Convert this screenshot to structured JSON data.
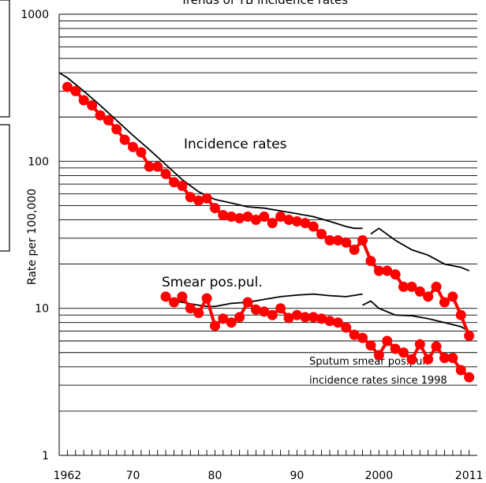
{
  "chart_data": {
    "type": "line",
    "title": "Trends of TB incidence rates",
    "ylabel": "Rate per 100,000",
    "yscale": "log",
    "ylim": [
      1,
      1000
    ],
    "xlim": [
      1961,
      2012
    ],
    "y_tick_labels": [
      "1",
      "10",
      "100",
      "1000"
    ],
    "x_tick_labels": [
      "1962",
      "70",
      "80",
      "90",
      "2000",
      "2011"
    ],
    "annotations": [
      "Incidence rates",
      "Smear pos.pul.",
      "Sputum smear pos.pul.",
      "incidence rates since 1998"
    ],
    "colors": {
      "marker_series": "#ff0000",
      "line_series": "#000000"
    },
    "series": [
      {
        "id": "incidence_markers",
        "x": [
          1962,
          1963,
          1964,
          1965,
          1966,
          1967,
          1968,
          1969,
          1970,
          1971,
          1972,
          1973,
          1974,
          1975,
          1976,
          1977,
          1978,
          1979,
          1980,
          1981,
          1982,
          1983,
          1984,
          1985,
          1986,
          1987,
          1988,
          1989,
          1990,
          1991,
          1992,
          1993,
          1994,
          1995,
          1996,
          1997,
          1998,
          1999,
          2000,
          2001,
          2002,
          2003,
          2004,
          2005,
          2006,
          2007,
          2008,
          2009,
          2010,
          2011
        ],
        "values": [
          320,
          300,
          260,
          240,
          205,
          190,
          165,
          140,
          125,
          115,
          92,
          92,
          82,
          72,
          68,
          57,
          54,
          56,
          48,
          43,
          42,
          41,
          42,
          40,
          42,
          38,
          42,
          40,
          39,
          38,
          36,
          32,
          29,
          29,
          28,
          25,
          29,
          21,
          18,
          18,
          17,
          14,
          14,
          13,
          12,
          14,
          11,
          12,
          9,
          6.5
        ]
      },
      {
        "id": "incidence_line_pre1999",
        "x": [
          1961,
          1962,
          1964,
          1966,
          1968,
          1970,
          1972,
          1974,
          1976,
          1978,
          1980,
          1982,
          1984,
          1986,
          1988,
          1990,
          1992,
          1994,
          1996,
          1997,
          1998
        ],
        "values": [
          400,
          370,
          300,
          240,
          190,
          150,
          120,
          95,
          75,
          62,
          55,
          52,
          49,
          48,
          46,
          44,
          42,
          39,
          36,
          35,
          35
        ]
      },
      {
        "id": "incidence_line_since1998",
        "x": [
          1999,
          2000,
          2002,
          2004,
          2006,
          2008,
          2010,
          2011
        ],
        "values": [
          32,
          35,
          29,
          25,
          23,
          20,
          19,
          18
        ]
      },
      {
        "id": "smear_markers",
        "x": [
          1974,
          1975,
          1976,
          1977,
          1978,
          1979,
          1980,
          1981,
          1982,
          1983,
          1984,
          1985,
          1986,
          1987,
          1988,
          1989,
          1990,
          1991,
          1992,
          1993,
          1994,
          1995,
          1996,
          1997,
          1998,
          1999,
          2000,
          2001,
          2002,
          2003,
          2004,
          2005,
          2006,
          2007,
          2008,
          2009,
          2010,
          2011
        ],
        "values": [
          12,
          11,
          12,
          10,
          9.3,
          11.7,
          7.6,
          8.5,
          8,
          8.7,
          11,
          9.8,
          9.5,
          9,
          10,
          8.6,
          9,
          8.7,
          8.7,
          8.5,
          8.2,
          8,
          7.4,
          6.6,
          6.3,
          5.6,
          4.8,
          6,
          5.3,
          5,
          4.5,
          5.7,
          4.5,
          5.5,
          4.6,
          4.6,
          3.8,
          3.4
        ]
      },
      {
        "id": "smear_line_pre1999",
        "x": [
          1974,
          1976,
          1978,
          1979,
          1980,
          1982,
          1984,
          1986,
          1988,
          1990,
          1992,
          1994,
          1996,
          1998
        ],
        "values": [
          11.5,
          11,
          10.5,
          10.3,
          10.3,
          10.8,
          11,
          11.5,
          12,
          12.3,
          12.5,
          12.2,
          12,
          12.5
        ]
      },
      {
        "id": "smear_line_since1998",
        "x": [
          1998,
          1999,
          2000,
          2002,
          2004,
          2006,
          2008,
          2010,
          2011
        ],
        "values": [
          10.5,
          11.2,
          10,
          9,
          8.9,
          8.5,
          8,
          7.5,
          7
        ]
      }
    ]
  }
}
